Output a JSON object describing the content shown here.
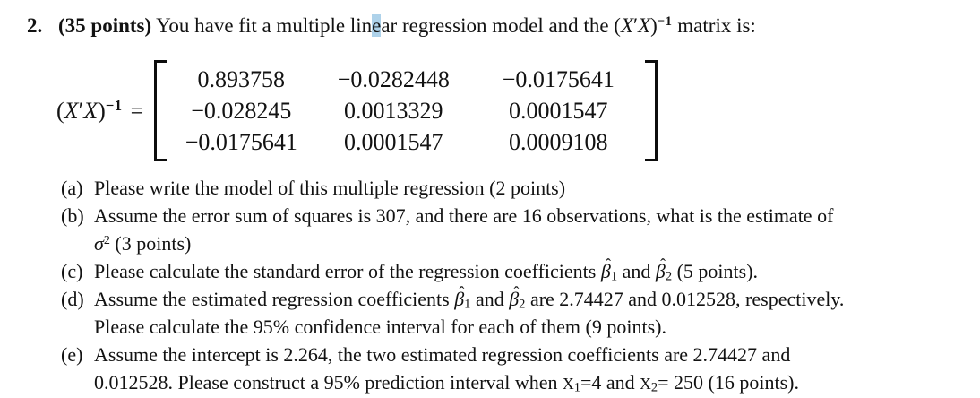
{
  "colors": {
    "selection_highlight": "#aed2ea",
    "text": "#121212",
    "background": "#ffffff"
  },
  "title": {
    "number": "2.",
    "points": "(35 points)",
    "pre": "You have fit a multiple lin",
    "highlighted": "e",
    "post": "ar regression model and the",
    "suffix": "matrix is:"
  },
  "math": {
    "xtx": {
      "open": "(",
      "x1": "X",
      "prime": "′",
      "x2": "X",
      "close": ")",
      "sup": "−1"
    },
    "equals": "=",
    "beta": "β",
    "hat": "ˆ",
    "sub1": "1",
    "sub2": "2"
  },
  "matrix": {
    "rows": [
      [
        "0.893758",
        "−0.0282448",
        "−0.0175641"
      ],
      [
        "−0.028245",
        "0.0013329",
        "0.0001547"
      ],
      [
        "−0.0175641",
        "0.0001547",
        "0.0009108"
      ]
    ]
  },
  "questions": {
    "a": {
      "label": "(a)",
      "text": "Please write the model of this multiple regression (2 points)"
    },
    "b": {
      "label": "(b)",
      "line1": "Assume the error sum of squares is 307, and there are 16 observations, what is the estimate of",
      "sigma": "σ",
      "sigma_sup": "2",
      "line2_rest": "(3 points)"
    },
    "c": {
      "label": "(c)",
      "seg1": "Please calculate the standard error of the regression coefficients",
      "and": "and",
      "tail": "(5 points)."
    },
    "d": {
      "label": "(d)",
      "seg1": "Assume the estimated regression coefficients",
      "and": "and",
      "tail1": "are 2.74427 and 0.012528, respectively.",
      "line2": "Please calculate the 95% confidence interval for each of them (9 points)."
    },
    "e": {
      "label": "(e)",
      "line1": "Assume the intercept is 2.264, the two estimated regression coefficients are 2.74427 and",
      "line2a": "0.012528. Please construct a 95% prediction interval when",
      "x1": "X",
      "sub1": "1",
      "mid": "=4 and",
      "x2": "X",
      "sub2": "2",
      "tail": "= 250 (16 points)."
    }
  }
}
